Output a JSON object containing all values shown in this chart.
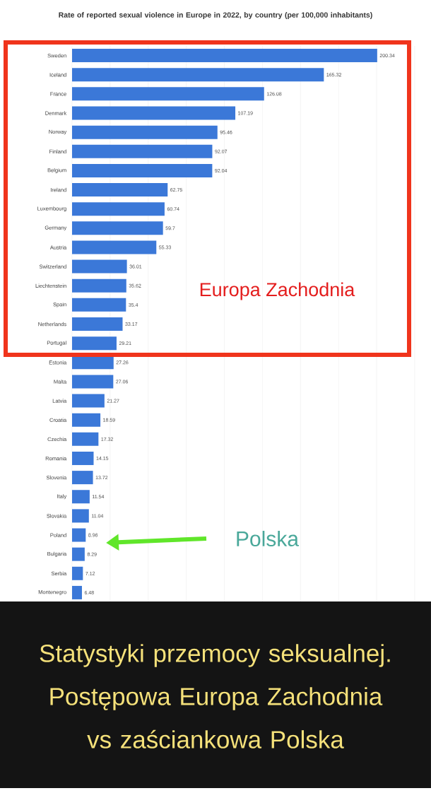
{
  "chart_data": {
    "type": "bar",
    "orientation": "horizontal",
    "title": "Rate of reported sexual violence in Europe in 2022, by country (per 100,000 inhabitants)",
    "categories": [
      "Sweden",
      "Iceland",
      "France",
      "Denmark",
      "Norway",
      "Finland",
      "Belgium",
      "Ireland",
      "Luxembourg",
      "Germany",
      "Austria",
      "Switzerland",
      "Liechtenstein",
      "Spain",
      "Netherlands",
      "Portugal",
      "Estonia",
      "Malta",
      "Latvia",
      "Croatia",
      "Czechia",
      "Romania",
      "Slovenia",
      "Italy",
      "Slovakia",
      "Poland",
      "Bulgaria",
      "Serbia",
      "Montenegro"
    ],
    "values": [
      200.34,
      165.32,
      126.08,
      107.19,
      95.46,
      92.07,
      92.04,
      62.75,
      60.74,
      59.7,
      55.33,
      36.01,
      35.62,
      35.4,
      33.17,
      29.21,
      27.26,
      27.06,
      21.27,
      18.59,
      17.32,
      14.15,
      13.72,
      11.54,
      11.04,
      8.96,
      8.29,
      7.12,
      6.48
    ],
    "color": "#3b78d8",
    "data_labels": true,
    "grid": "x",
    "tick_labels": "y",
    "xlim": [
      0,
      225
    ],
    "xticks": [
      {
        "value": 0,
        "label": null
      },
      {
        "value": 25,
        "label": null
      },
      {
        "value": 50,
        "label": null
      },
      {
        "value": 75,
        "label": null
      },
      {
        "value": 100,
        "label": null
      },
      {
        "value": 125,
        "label": null
      },
      {
        "value": 150,
        "label": null
      },
      {
        "value": 175,
        "label": null
      },
      {
        "value": 200,
        "label": null
      },
      {
        "value": 225,
        "label": null
      }
    ],
    "annotations": [
      "Statystyki przemocy seksualnej. Postępowa Europa Zachodnia vs zaściankowa Polska",
      "Europa Zachodnia",
      "Polska"
    ]
  }
}
